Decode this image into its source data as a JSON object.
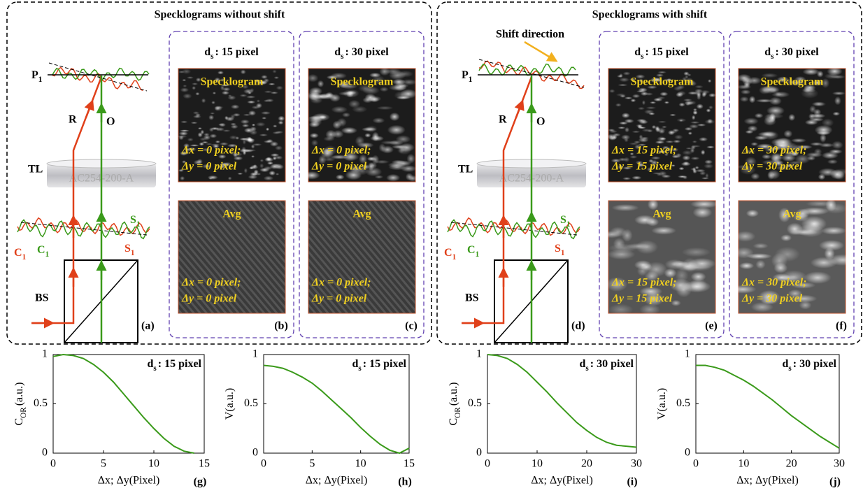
{
  "groups": [
    {
      "title": "Specklograms without shift",
      "diagram": {
        "p": {
          "text": "P",
          "sub": "1"
        },
        "r": "R",
        "o": "O",
        "tl": "TL",
        "lens": "AC254-200-A",
        "s_green": {
          "text": "S",
          "sub": "1"
        },
        "s_red": {
          "text": "S",
          "sub": "1"
        },
        "c_red": {
          "text": "C",
          "sub": "1"
        },
        "c_green": {
          "text": "C",
          "sub": "1"
        },
        "bs": "BS",
        "letter": "(a)"
      },
      "panels": [
        {
          "header": {
            "text": "d",
            "sub": "s",
            "rest": ": 15 pixel"
          },
          "top": {
            "label": "Specklogram",
            "dx": "Δx = 0 pixel;",
            "dy": "Δy = 0 pixel"
          },
          "bottom": {
            "label": "Avg",
            "dx": "Δx = 0 pixel;",
            "dy": "Δy = 0 pixel"
          },
          "letter": "(b)"
        },
        {
          "header": {
            "text": "d",
            "sub": "s",
            "rest": ": 30 pixel"
          },
          "top": {
            "label": "Specklogram",
            "dx": "Δx = 0 pixel;",
            "dy": "Δy = 0 pixel"
          },
          "bottom": {
            "label": "Avg",
            "dx": "Δx = 0 pixel;",
            "dy": "Δy = 0 pixel"
          },
          "letter": "(c)"
        }
      ]
    },
    {
      "title": "Specklograms with shift",
      "shift": "Shift direction",
      "diagram": {
        "p": {
          "text": "P",
          "sub": "1"
        },
        "r": "R",
        "o": "O",
        "tl": "TL",
        "lens": "AC254-200-A",
        "s_green": {
          "text": "S",
          "sub": "1"
        },
        "s_red": {
          "text": "S",
          "sub": "1"
        },
        "c_red": {
          "text": "C",
          "sub": "1"
        },
        "c_green": {
          "text": "C",
          "sub": "1"
        },
        "bs": "BS",
        "letter": "(d)"
      },
      "panels": [
        {
          "header": {
            "text": "d",
            "sub": "s",
            "rest": ": 15 pixel"
          },
          "top": {
            "label": "Specklogram",
            "dx": "Δx = 15 pixel;",
            "dy": "Δy = 15 pixel"
          },
          "bottom": {
            "label": "Avg",
            "dx": "Δx = 15 pixel;",
            "dy": "Δy = 15 pixel"
          },
          "letter": "(e)"
        },
        {
          "header": {
            "text": "d",
            "sub": "s",
            "rest": ": 30 pixel"
          },
          "top": {
            "label": "Specklogram",
            "dx": "Δx = 30 pixel;",
            "dy": "Δy = 30 pixel"
          },
          "bottom": {
            "label": "Avg",
            "dx": "Δx = 30 pixel;",
            "dy": "Δy = 30 pixel"
          },
          "letter": "(f)"
        }
      ]
    }
  ],
  "chart_data": [
    {
      "type": "line",
      "annotation": {
        "text": "d",
        "sub": "s",
        "rest": ": 15 pixel"
      },
      "ylabel": {
        "text": "C",
        "sub": "OR",
        "rest": "(a.u.)"
      },
      "xlabel": "Δx; Δy(Pixel)",
      "letter": "(g)",
      "x": [
        0,
        1,
        2,
        3,
        4,
        5,
        6,
        7,
        8,
        9,
        10,
        11,
        12,
        13,
        14
      ],
      "series": [
        {
          "color": "#3a9a1a",
          "values": [
            0.98,
            1.0,
            0.99,
            0.96,
            0.9,
            0.82,
            0.72,
            0.6,
            0.48,
            0.36,
            0.25,
            0.15,
            0.07,
            0.02,
            0.0
          ]
        }
      ],
      "xlim": [
        0,
        15
      ],
      "xticks": [
        0,
        5,
        10,
        15
      ],
      "ylim": [
        0,
        1
      ],
      "yticks": [
        0,
        0.5,
        1
      ]
    },
    {
      "type": "line",
      "annotation": {
        "text": "d",
        "sub": "s",
        "rest": ": 15 pixel"
      },
      "ylabel": {
        "text": "V",
        "rest": "(a.u.)"
      },
      "xlabel": "Δx; Δy(Pixel)",
      "letter": "(h)",
      "x": [
        0,
        1,
        2,
        3,
        4,
        5,
        6,
        7,
        8,
        9,
        10,
        11,
        12,
        13,
        14,
        15
      ],
      "series": [
        {
          "color": "#3a9a1a",
          "values": [
            0.89,
            0.88,
            0.86,
            0.82,
            0.77,
            0.71,
            0.63,
            0.54,
            0.45,
            0.36,
            0.26,
            0.17,
            0.09,
            0.03,
            0.0,
            0.05
          ]
        }
      ],
      "xlim": [
        0,
        15
      ],
      "xticks": [
        0,
        5,
        10,
        15
      ],
      "ylim": [
        0,
        1
      ],
      "yticks": [
        0,
        0.5,
        1
      ]
    },
    {
      "type": "line",
      "annotation": {
        "text": "d",
        "sub": "s",
        "rest": ": 30 pixel"
      },
      "ylabel": {
        "text": "C",
        "sub": "OR",
        "rest": "(a.u.)"
      },
      "xlabel": "Δx; Δy(Pixel)",
      "letter": "(i)",
      "x": [
        0,
        2,
        4,
        6,
        8,
        10,
        12,
        14,
        16,
        18,
        20,
        22,
        24,
        26,
        28,
        30
      ],
      "series": [
        {
          "color": "#3a9a1a",
          "values": [
            1.0,
            0.99,
            0.96,
            0.9,
            0.82,
            0.72,
            0.62,
            0.51,
            0.41,
            0.31,
            0.23,
            0.16,
            0.11,
            0.08,
            0.07,
            0.06
          ]
        }
      ],
      "xlim": [
        0,
        30
      ],
      "xticks": [
        0,
        10,
        20,
        30
      ],
      "ylim": [
        0,
        1
      ],
      "yticks": [
        0,
        0.5,
        1
      ]
    },
    {
      "type": "line",
      "annotation": {
        "text": "d",
        "sub": "s",
        "rest": ": 30 pixel"
      },
      "ylabel": {
        "text": "V",
        "rest": "(a.u.)"
      },
      "xlabel": "Δx; Δy(Pixel)",
      "letter": "(j)",
      "x": [
        0,
        2,
        4,
        6,
        8,
        10,
        12,
        14,
        16,
        18,
        20,
        22,
        24,
        26,
        28,
        30
      ],
      "series": [
        {
          "color": "#3a9a1a",
          "values": [
            0.89,
            0.89,
            0.87,
            0.84,
            0.79,
            0.74,
            0.68,
            0.61,
            0.54,
            0.46,
            0.38,
            0.31,
            0.24,
            0.17,
            0.11,
            0.05
          ]
        }
      ],
      "xlim": [
        0,
        30
      ],
      "xticks": [
        0,
        10,
        20,
        30
      ],
      "ylim": [
        0,
        1
      ],
      "yticks": [
        0,
        0.5,
        1
      ]
    }
  ]
}
